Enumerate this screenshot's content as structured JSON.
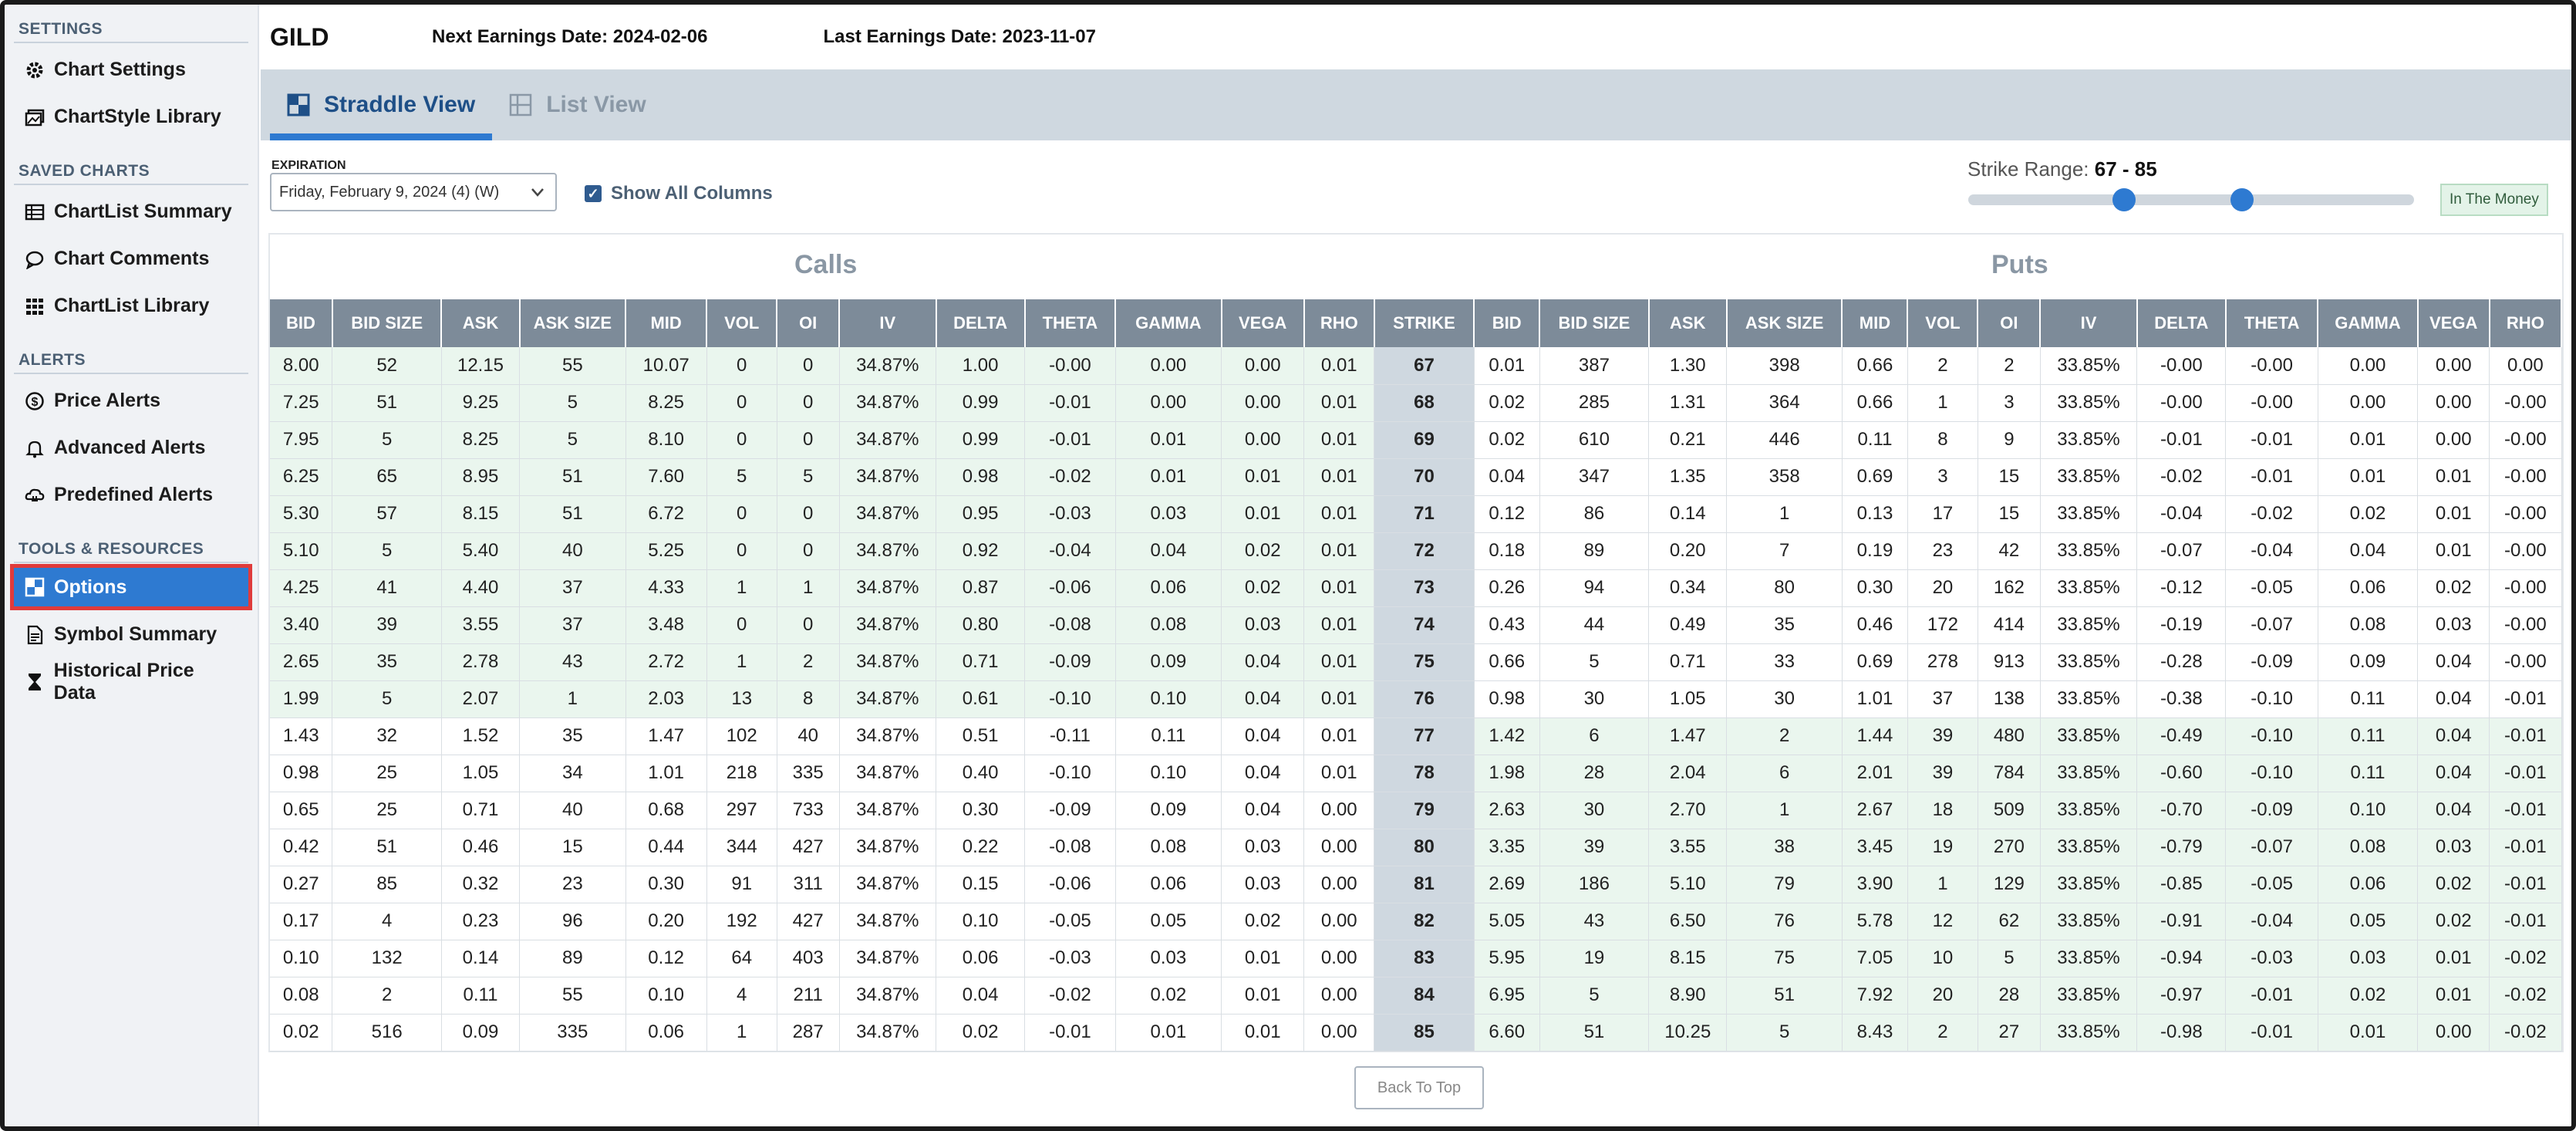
{
  "sidebar": {
    "sections": [
      {
        "title": "SETTINGS",
        "items": [
          {
            "label": "Chart Settings",
            "icon": "gear-icon"
          },
          {
            "label": "ChartStyle Library",
            "icon": "images-icon"
          }
        ]
      },
      {
        "title": "SAVED CHARTS",
        "items": [
          {
            "label": "ChartList Summary",
            "icon": "table-icon"
          },
          {
            "label": "Chart Comments",
            "icon": "comment-icon"
          },
          {
            "label": "ChartList Library",
            "icon": "grid-icon"
          }
        ]
      },
      {
        "title": "ALERTS",
        "items": [
          {
            "label": "Price Alerts",
            "icon": "dollar-icon"
          },
          {
            "label": "Advanced Alerts",
            "icon": "bell-icon"
          },
          {
            "label": "Predefined Alerts",
            "icon": "bell-cloud-icon"
          }
        ]
      },
      {
        "title": "TOOLS & RESOURCES",
        "items": [
          {
            "label": "Options",
            "icon": "options-icon",
            "active": true
          },
          {
            "label": "Symbol Summary",
            "icon": "document-icon"
          },
          {
            "label": "Historical Price Data",
            "icon": "hourglass-icon"
          }
        ]
      }
    ]
  },
  "header": {
    "ticker": "GILD",
    "next_earnings": "Next Earnings Date: 2024-02-06",
    "last_earnings": "Last Earnings Date: 2023-11-07"
  },
  "tabs": [
    {
      "label": "Straddle View",
      "active": true
    },
    {
      "label": "List View",
      "active": false
    }
  ],
  "controls": {
    "expiration_label": "EXPIRATION",
    "expiration_value": "Friday, February 9, 2024 (4) (W)",
    "show_all_columns": "Show All Columns",
    "strike_range_label": "Strike Range:",
    "strike_range_value": "67 - 85",
    "slider_low_fraction": 0.35,
    "slider_high_fraction": 0.615,
    "in_the_money": "In The Money",
    "back_to_top": "Back To Top"
  },
  "table": {
    "calls_title": "Calls",
    "puts_title": "Puts",
    "headers": [
      "BID",
      "BID SIZE",
      "ASK",
      "ASK SIZE",
      "MID",
      "VOL",
      "OI",
      "IV",
      "DELTA",
      "THETA",
      "GAMMA",
      "VEGA",
      "RHO",
      "STRIKE",
      "BID",
      "BID SIZE",
      "ASK",
      "ASK SIZE",
      "MID",
      "VOL",
      "OI",
      "IV",
      "DELTA",
      "THETA",
      "GAMMA",
      "VEGA",
      "RHO"
    ],
    "rows": [
      [
        "8.00",
        "52",
        "12.15",
        "55",
        "10.07",
        "0",
        "0",
        "34.87%",
        "1.00",
        "-0.00",
        "0.00",
        "0.00",
        "0.01",
        "67",
        "0.01",
        "387",
        "1.30",
        "398",
        "0.66",
        "2",
        "2",
        "33.85%",
        "-0.00",
        "-0.00",
        "0.00",
        "0.00",
        "0.00"
      ],
      [
        "7.25",
        "51",
        "9.25",
        "5",
        "8.25",
        "0",
        "0",
        "34.87%",
        "0.99",
        "-0.01",
        "0.00",
        "0.00",
        "0.01",
        "68",
        "0.02",
        "285",
        "1.31",
        "364",
        "0.66",
        "1",
        "3",
        "33.85%",
        "-0.00",
        "-0.00",
        "0.00",
        "0.00",
        "-0.00"
      ],
      [
        "7.95",
        "5",
        "8.25",
        "5",
        "8.10",
        "0",
        "0",
        "34.87%",
        "0.99",
        "-0.01",
        "0.01",
        "0.00",
        "0.01",
        "69",
        "0.02",
        "610",
        "0.21",
        "446",
        "0.11",
        "8",
        "9",
        "33.85%",
        "-0.01",
        "-0.01",
        "0.01",
        "0.00",
        "-0.00"
      ],
      [
        "6.25",
        "65",
        "8.95",
        "51",
        "7.60",
        "5",
        "5",
        "34.87%",
        "0.98",
        "-0.02",
        "0.01",
        "0.01",
        "0.01",
        "70",
        "0.04",
        "347",
        "1.35",
        "358",
        "0.69",
        "3",
        "15",
        "33.85%",
        "-0.02",
        "-0.01",
        "0.01",
        "0.01",
        "-0.00"
      ],
      [
        "5.30",
        "57",
        "8.15",
        "51",
        "6.72",
        "0",
        "0",
        "34.87%",
        "0.95",
        "-0.03",
        "0.03",
        "0.01",
        "0.01",
        "71",
        "0.12",
        "86",
        "0.14",
        "1",
        "0.13",
        "17",
        "15",
        "33.85%",
        "-0.04",
        "-0.02",
        "0.02",
        "0.01",
        "-0.00"
      ],
      [
        "5.10",
        "5",
        "5.40",
        "40",
        "5.25",
        "0",
        "0",
        "34.87%",
        "0.92",
        "-0.04",
        "0.04",
        "0.02",
        "0.01",
        "72",
        "0.18",
        "89",
        "0.20",
        "7",
        "0.19",
        "23",
        "42",
        "33.85%",
        "-0.07",
        "-0.04",
        "0.04",
        "0.01",
        "-0.00"
      ],
      [
        "4.25",
        "41",
        "4.40",
        "37",
        "4.33",
        "1",
        "1",
        "34.87%",
        "0.87",
        "-0.06",
        "0.06",
        "0.02",
        "0.01",
        "73",
        "0.26",
        "94",
        "0.34",
        "80",
        "0.30",
        "20",
        "162",
        "33.85%",
        "-0.12",
        "-0.05",
        "0.06",
        "0.02",
        "-0.00"
      ],
      [
        "3.40",
        "39",
        "3.55",
        "37",
        "3.48",
        "0",
        "0",
        "34.87%",
        "0.80",
        "-0.08",
        "0.08",
        "0.03",
        "0.01",
        "74",
        "0.43",
        "44",
        "0.49",
        "35",
        "0.46",
        "172",
        "414",
        "33.85%",
        "-0.19",
        "-0.07",
        "0.08",
        "0.03",
        "-0.00"
      ],
      [
        "2.65",
        "35",
        "2.78",
        "43",
        "2.72",
        "1",
        "2",
        "34.87%",
        "0.71",
        "-0.09",
        "0.09",
        "0.04",
        "0.01",
        "75",
        "0.66",
        "5",
        "0.71",
        "33",
        "0.69",
        "278",
        "913",
        "33.85%",
        "-0.28",
        "-0.09",
        "0.09",
        "0.04",
        "-0.00"
      ],
      [
        "1.99",
        "5",
        "2.07",
        "1",
        "2.03",
        "13",
        "8",
        "34.87%",
        "0.61",
        "-0.10",
        "0.10",
        "0.04",
        "0.01",
        "76",
        "0.98",
        "30",
        "1.05",
        "30",
        "1.01",
        "37",
        "138",
        "33.85%",
        "-0.38",
        "-0.10",
        "0.11",
        "0.04",
        "-0.01"
      ],
      [
        "1.43",
        "32",
        "1.52",
        "35",
        "1.47",
        "102",
        "40",
        "34.87%",
        "0.51",
        "-0.11",
        "0.11",
        "0.04",
        "0.01",
        "77",
        "1.42",
        "6",
        "1.47",
        "2",
        "1.44",
        "39",
        "480",
        "33.85%",
        "-0.49",
        "-0.10",
        "0.11",
        "0.04",
        "-0.01"
      ],
      [
        "0.98",
        "25",
        "1.05",
        "34",
        "1.01",
        "218",
        "335",
        "34.87%",
        "0.40",
        "-0.10",
        "0.10",
        "0.04",
        "0.01",
        "78",
        "1.98",
        "28",
        "2.04",
        "6",
        "2.01",
        "39",
        "784",
        "33.85%",
        "-0.60",
        "-0.10",
        "0.11",
        "0.04",
        "-0.01"
      ],
      [
        "0.65",
        "25",
        "0.71",
        "40",
        "0.68",
        "297",
        "733",
        "34.87%",
        "0.30",
        "-0.09",
        "0.09",
        "0.04",
        "0.00",
        "79",
        "2.63",
        "30",
        "2.70",
        "1",
        "2.67",
        "18",
        "509",
        "33.85%",
        "-0.70",
        "-0.09",
        "0.10",
        "0.04",
        "-0.01"
      ],
      [
        "0.42",
        "51",
        "0.46",
        "15",
        "0.44",
        "344",
        "427",
        "34.87%",
        "0.22",
        "-0.08",
        "0.08",
        "0.03",
        "0.00",
        "80",
        "3.35",
        "39",
        "3.55",
        "38",
        "3.45",
        "19",
        "270",
        "33.85%",
        "-0.79",
        "-0.07",
        "0.08",
        "0.03",
        "-0.01"
      ],
      [
        "0.27",
        "85",
        "0.32",
        "23",
        "0.30",
        "91",
        "311",
        "34.87%",
        "0.15",
        "-0.06",
        "0.06",
        "0.03",
        "0.00",
        "81",
        "2.69",
        "186",
        "5.10",
        "79",
        "3.90",
        "1",
        "129",
        "33.85%",
        "-0.85",
        "-0.05",
        "0.06",
        "0.02",
        "-0.01"
      ],
      [
        "0.17",
        "4",
        "0.23",
        "96",
        "0.20",
        "192",
        "427",
        "34.87%",
        "0.10",
        "-0.05",
        "0.05",
        "0.02",
        "0.00",
        "82",
        "5.05",
        "43",
        "6.50",
        "76",
        "5.78",
        "12",
        "62",
        "33.85%",
        "-0.91",
        "-0.04",
        "0.05",
        "0.02",
        "-0.01"
      ],
      [
        "0.10",
        "132",
        "0.14",
        "89",
        "0.12",
        "64",
        "403",
        "34.87%",
        "0.06",
        "-0.03",
        "0.03",
        "0.01",
        "0.00",
        "83",
        "5.95",
        "19",
        "8.15",
        "75",
        "7.05",
        "10",
        "5",
        "33.85%",
        "-0.94",
        "-0.03",
        "0.03",
        "0.01",
        "-0.02"
      ],
      [
        "0.08",
        "2",
        "0.11",
        "55",
        "0.10",
        "4",
        "211",
        "34.87%",
        "0.04",
        "-0.02",
        "0.02",
        "0.01",
        "0.00",
        "84",
        "6.95",
        "5",
        "8.90",
        "51",
        "7.92",
        "20",
        "28",
        "33.85%",
        "-0.97",
        "-0.01",
        "0.02",
        "0.01",
        "-0.02"
      ],
      [
        "0.02",
        "516",
        "0.09",
        "335",
        "0.06",
        "1",
        "287",
        "34.87%",
        "0.02",
        "-0.01",
        "0.01",
        "0.01",
        "0.00",
        "85",
        "6.60",
        "51",
        "10.25",
        "5",
        "8.43",
        "2",
        "27",
        "33.85%",
        "-0.98",
        "-0.01",
        "0.01",
        "0.00",
        "-0.02"
      ]
    ],
    "calls_itm_through_strike": 76,
    "puts_itm_from_strike": 77
  },
  "colors": {
    "accent": "#2e7ad1",
    "itm": "#eaf6ee",
    "header": "#7d8b99",
    "strike": "#cfd8e0"
  }
}
